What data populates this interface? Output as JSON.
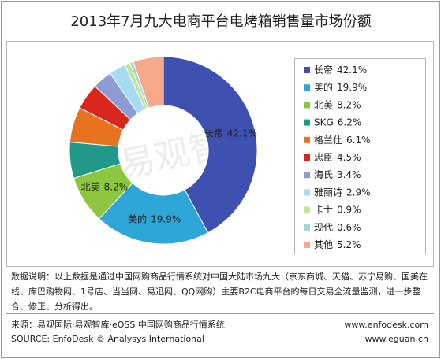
{
  "chart_data": {
    "type": "donut",
    "title": "2013年7月九大电商平台电烤箱销售量市场份额",
    "categories": [
      "长帝",
      "美的",
      "北美",
      "SKG",
      "格兰仕",
      "忠臣",
      "海氏",
      "雅丽诗",
      "卡士",
      "现代",
      "其他"
    ],
    "values": [
      42.1,
      19.9,
      8.2,
      6.2,
      6.1,
      4.5,
      3.4,
      2.9,
      0.9,
      0.6,
      5.2
    ],
    "value_labels": [
      "42.1%",
      "19.9%",
      "8.2%",
      "6.2%",
      "6.1%",
      "4.5%",
      "3.4%",
      "2.9%",
      "0.9%",
      "0.6%",
      "5.2%"
    ],
    "colors": [
      "#3f51b0",
      "#2ea6d8",
      "#8dc63f",
      "#20998a",
      "#e8731e",
      "#d9261c",
      "#8e9bd5",
      "#a6dcf2",
      "#c4e39a",
      "#9fd8cc",
      "#f7a98b"
    ],
    "legend": "right"
  },
  "watermark": "易观智库",
  "notes": "数据说明：以上数据是通过中国网购商品行情系统对中国大陆市场九大（京东商城、天猫、苏宁易购、国美在线、库巴购物网、1号店、当当网、易迅网、QQ网购）主要B2C电商平台的每日交易全流量监测，进一步整合、修正、分析得出。",
  "footer": {
    "source_cn": "来源：易观国际·易观智库·eOSS 中国网购商品行情系统",
    "source_en": "SOURCE: EnfoDesk © Analysys International",
    "site1": "www.enfodesk.com",
    "site2": "www.eguan.cn"
  }
}
